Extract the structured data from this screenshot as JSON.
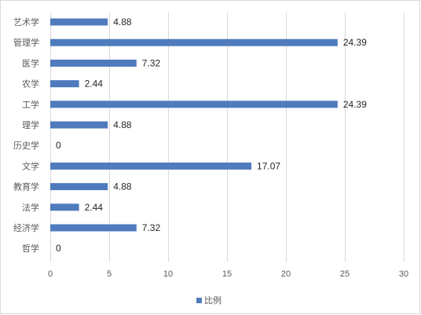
{
  "chart_data": {
    "type": "bar",
    "orientation": "horizontal",
    "categories": [
      "艺术学",
      "管理学",
      "医学",
      "农学",
      "工学",
      "理学",
      "历史学",
      "文学",
      "教育学",
      "法学",
      "经济学",
      "哲学"
    ],
    "series": [
      {
        "name": "比例",
        "values": [
          4.88,
          24.39,
          7.32,
          2.44,
          24.39,
          4.88,
          0,
          17.07,
          4.88,
          2.44,
          7.32,
          0
        ],
        "value_labels": [
          "4.88",
          "24.39",
          "7.32",
          "2.44",
          "24.39",
          "4.88",
          "0",
          "17.07",
          "4.88",
          "2.44",
          "7.32",
          "0"
        ]
      }
    ],
    "xlim": [
      0,
      30
    ],
    "xticks": [
      0,
      5,
      10,
      15,
      20,
      25,
      30
    ],
    "xtick_labels": [
      "0",
      "5",
      "10",
      "15",
      "20",
      "25",
      "30"
    ],
    "grid": "vertical",
    "legend": "bottom",
    "bar_color": "#4f7bbd",
    "grid_color": "#d9d9d9"
  }
}
